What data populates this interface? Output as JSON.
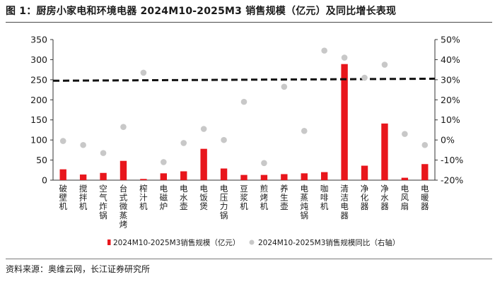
{
  "title": "图 1：厨房小家电和环境电器 2024M10-2025M3 销售规模（亿元）及同比增长表现",
  "source": "资料来源：奥维云网，长江证券研究所",
  "colors": {
    "bar": "#e8161c",
    "dot": "#c8c8c8",
    "ref_line": "#111111"
  },
  "chart_data": {
    "type": "bar",
    "categories": [
      "破壁机",
      "搅拌机",
      "空气炸锅",
      "台式微蒸烤",
      "榨汁机",
      "电磁炉",
      "电水壶",
      "电饭煲",
      "电压力锅",
      "豆浆机",
      "煎烤机",
      "养生壶",
      "电蒸炖锅",
      "咖啡机",
      "清洁电器",
      "净化器",
      "净水器",
      "电风扇",
      "电暖器"
    ],
    "series": [
      {
        "name": "2024M10-2025M3销售规模（亿元）",
        "type": "bar",
        "axis": "left",
        "values": [
          27,
          14,
          18,
          48,
          3,
          17,
          22,
          78,
          29,
          13,
          13,
          15,
          17,
          20,
          289,
          36,
          141,
          6,
          40
        ]
      },
      {
        "name": "2024M10-2025M3销售规模同比（右轴）",
        "type": "scatter",
        "axis": "right",
        "values": [
          -0.5,
          -2.5,
          -6.5,
          6.5,
          33.5,
          -11,
          -1.5,
          5.5,
          0,
          19,
          -11.5,
          26.5,
          4.5,
          44.5,
          41,
          31,
          37.5,
          3,
          -2.5
        ]
      }
    ],
    "reference_line": {
      "axis": "right",
      "y_start": 29.5,
      "y_end": 30.5,
      "style": "dashed"
    },
    "y_left": {
      "lim": [
        0,
        350
      ],
      "ticks": [
        "0",
        "50",
        "100",
        "150",
        "200",
        "250",
        "300",
        "350"
      ]
    },
    "y_right": {
      "lim": [
        -20,
        50
      ],
      "ticks": [
        "-20%",
        "-10%",
        "0%",
        "10%",
        "20%",
        "30%",
        "40%",
        "50%"
      ]
    },
    "legend": {
      "position": "bottom",
      "items": [
        "2024M10-2025M3销售规模（亿元）",
        "2024M10-2025M3销售规模同比（右轴）"
      ]
    },
    "grid": false
  }
}
